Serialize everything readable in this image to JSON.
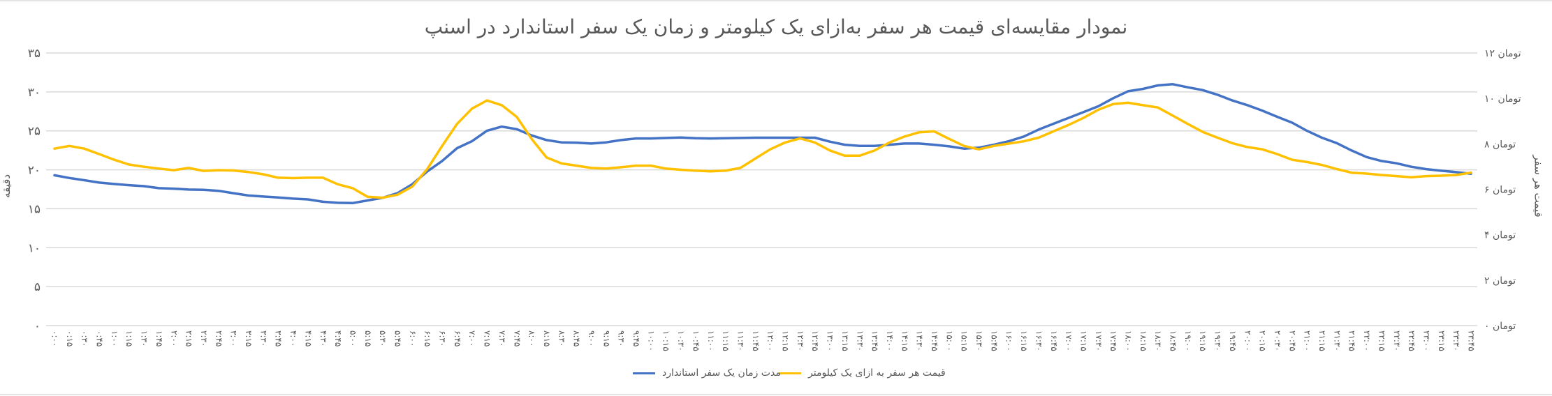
{
  "chart_data": {
    "type": "line",
    "title": "نمودار مقایسه‌ای قیمت هر سفر به‌ازای یک کیلومتر و زمان یک سفر استاندارد در اسنپ",
    "ylabel": "دقیقه",
    "y2label": "قیمت هر سفر",
    "ylim": [
      0,
      35
    ],
    "y2lim": [
      0,
      12
    ],
    "yticks": [
      "۰",
      "۵",
      "۱۰",
      "۱۵",
      "۲۰",
      "۲۵",
      "۳۰",
      "۳۵"
    ],
    "y2ticks": [
      "۰ تومان",
      "۲ تومان",
      "۴ تومان",
      "۶ تومان",
      "۸ تومان",
      "۱۰ تومان",
      "۱۲ تومان"
    ],
    "grid": true,
    "legend_position": "bottom",
    "categories": [
      "۰:۰۰",
      "۰:۱۵",
      "۰:۳۰",
      "۰:۴۵",
      "۱:۰۰",
      "۱:۱۵",
      "۱:۳۰",
      "۱:۴۵",
      "۲:۰۰",
      "۲:۱۵",
      "۲:۳۰",
      "۲:۴۵",
      "۳:۰۰",
      "۳:۱۵",
      "۳:۳۰",
      "۳:۴۵",
      "۴:۰۰",
      "۴:۱۵",
      "۴:۳۰",
      "۴:۴۵",
      "۵:۰۰",
      "۵:۱۵",
      "۵:۳۰",
      "۵:۴۵",
      "۶:۰۰",
      "۶:۱۵",
      "۶:۳۰",
      "۶:۴۵",
      "۷:۰۰",
      "۷:۱۵",
      "۷:۳۰",
      "۷:۴۵",
      "۸:۰۰",
      "۸:۱۵",
      "۸:۳۰",
      "۸:۴۵",
      "۹:۰۰",
      "۹:۱۵",
      "۹:۳۰",
      "۹:۴۵",
      "۱۰:۰۰",
      "۱۰:۱۵",
      "۱۰:۳۰",
      "۱۰:۴۵",
      "۱۱:۰۰",
      "۱۱:۱۵",
      "۱۱:۳۰",
      "۱۱:۴۵",
      "۱۲:۰۰",
      "۱۲:۱۵",
      "۱۲:۳۰",
      "۱۲:۴۵",
      "۱۳:۰۰",
      "۱۳:۱۵",
      "۱۳:۳۰",
      "۱۳:۴۵",
      "۱۴:۰۰",
      "۱۴:۱۵",
      "۱۴:۳۰",
      "۱۴:۴۵",
      "۱۵:۰۰",
      "۱۵:۱۵",
      "۱۵:۳۰",
      "۱۵:۴۵",
      "۱۶:۰۰",
      "۱۶:۱۵",
      "۱۶:۳۰",
      "۱۶:۴۵",
      "۱۷:۰۰",
      "۱۷:۱۵",
      "۱۷:۳۰",
      "۱۷:۴۵",
      "۱۸:۰۰",
      "۱۸:۱۵",
      "۱۸:۳۰",
      "۱۸:۴۵",
      "۱۹:۰۰",
      "۱۹:۱۵",
      "۱۹:۳۰",
      "۱۹:۴۵",
      "۲۰:۰۰",
      "۲۰:۱۵",
      "۲۰:۳۰",
      "۲۰:۴۵",
      "۲۱:۰۰",
      "۲۱:۱۵",
      "۲۱:۳۰",
      "۲۱:۴۵",
      "۲۲:۰۰",
      "۲۲:۱۵",
      "۲۲:۳۰",
      "۲۲:۴۵",
      "۲۳:۰۰",
      "۲۳:۱۵",
      "۲۳:۳۰",
      "۲۳:۴۵"
    ],
    "series": [
      {
        "name": "مدت زمان یک سفر استاندارد",
        "axis": "left",
        "color": "#4472C4",
        "values": [
          19.3,
          18.95,
          18.66,
          18.36,
          18.18,
          18.03,
          17.9,
          17.64,
          17.58,
          17.46,
          17.43,
          17.3,
          17.0,
          16.7,
          16.57,
          16.45,
          16.3,
          16.2,
          15.9,
          15.76,
          15.73,
          16.07,
          16.4,
          17.0,
          18.15,
          19.79,
          21.13,
          22.78,
          23.67,
          25.01,
          25.55,
          25.22,
          24.42,
          23.82,
          23.52,
          23.49,
          23.37,
          23.52,
          23.82,
          24.03,
          24.03,
          24.09,
          24.15,
          24.06,
          24.03,
          24.06,
          24.09,
          24.12,
          24.12,
          24.12,
          24.12,
          24.12,
          23.61,
          23.22,
          23.07,
          23.07,
          23.22,
          23.37,
          23.37,
          23.22,
          23.01,
          22.72,
          22.84,
          23.22,
          23.67,
          24.27,
          25.16,
          25.91,
          26.66,
          27.4,
          28.15,
          29.19,
          30.09,
          30.39,
          30.84,
          30.99,
          30.6,
          30.24,
          29.64,
          28.9,
          28.3,
          27.61,
          26.81,
          26.06,
          25.01,
          24.12,
          23.43,
          22.48,
          21.64,
          21.13,
          20.84,
          20.39,
          20.09,
          19.88,
          19.7,
          19.49
        ]
      },
      {
        "name": "قیمت هر سفر به ازای یک کیلومتر",
        "axis": "right",
        "color": "#FFC000",
        "values": [
          7.79,
          7.91,
          7.79,
          7.55,
          7.3,
          7.09,
          6.99,
          6.91,
          6.84,
          6.94,
          6.81,
          6.84,
          6.83,
          6.76,
          6.66,
          6.51,
          6.49,
          6.51,
          6.51,
          6.22,
          6.05,
          5.67,
          5.63,
          5.76,
          6.12,
          6.89,
          7.91,
          8.88,
          9.55,
          9.91,
          9.7,
          9.19,
          8.22,
          7.4,
          7.14,
          7.04,
          6.94,
          6.91,
          6.97,
          7.04,
          7.04,
          6.91,
          6.86,
          6.82,
          6.79,
          6.82,
          6.94,
          7.35,
          7.76,
          8.06,
          8.24,
          8.06,
          7.71,
          7.48,
          7.48,
          7.71,
          8.06,
          8.32,
          8.51,
          8.55,
          8.22,
          7.91,
          7.76,
          7.91,
          8.01,
          8.11,
          8.27,
          8.55,
          8.83,
          9.14,
          9.5,
          9.75,
          9.81,
          9.7,
          9.6,
          9.24,
          8.88,
          8.53,
          8.27,
          8.03,
          7.86,
          7.76,
          7.55,
          7.3,
          7.2,
          7.07,
          6.89,
          6.73,
          6.69,
          6.63,
          6.58,
          6.53,
          6.58,
          6.6,
          6.63,
          6.73
        ]
      }
    ]
  }
}
